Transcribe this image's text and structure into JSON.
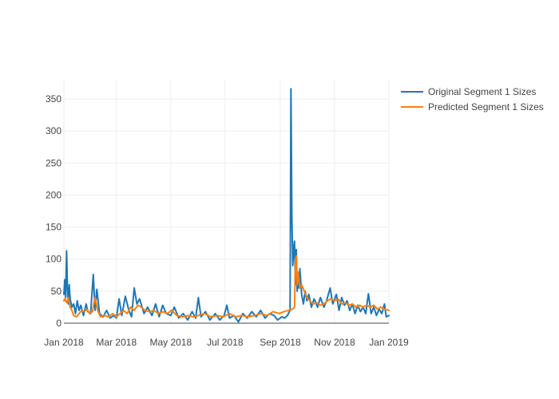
{
  "chart_data": {
    "type": "line",
    "title": "",
    "xlabel": "",
    "ylabel": "",
    "x_range": [
      "2018-01-01",
      "2019-01-01"
    ],
    "ylim": [
      0,
      380
    ],
    "x_ticks": [
      {
        "date": "2018-01-01",
        "label": "Jan 2018"
      },
      {
        "date": "2018-03-01",
        "label": "Mar 2018"
      },
      {
        "date": "2018-05-01",
        "label": "May 2018"
      },
      {
        "date": "2018-07-01",
        "label": "Jul 2018"
      },
      {
        "date": "2018-09-01",
        "label": "Sep 2018"
      },
      {
        "date": "2018-11-01",
        "label": "Nov 2018"
      },
      {
        "date": "2019-01-01",
        "label": "Jan 2019"
      }
    ],
    "y_ticks": [
      0,
      50,
      100,
      150,
      200,
      250,
      300,
      350
    ],
    "grid": true,
    "legend_position": "top-right",
    "series": [
      {
        "name": "Original Segment 1 Sizes",
        "color": "#1f77b4",
        "points": [
          [
            "2018-01-01",
            45
          ],
          [
            "2018-01-02",
            68
          ],
          [
            "2018-01-03",
            40
          ],
          [
            "2018-01-04",
            113
          ],
          [
            "2018-01-05",
            55
          ],
          [
            "2018-01-06",
            30
          ],
          [
            "2018-01-07",
            60
          ],
          [
            "2018-01-08",
            38
          ],
          [
            "2018-01-10",
            25
          ],
          [
            "2018-01-12",
            30
          ],
          [
            "2018-01-14",
            15
          ],
          [
            "2018-01-16",
            35
          ],
          [
            "2018-01-18",
            20
          ],
          [
            "2018-01-20",
            28
          ],
          [
            "2018-01-23",
            12
          ],
          [
            "2018-01-26",
            30
          ],
          [
            "2018-01-28",
            18
          ],
          [
            "2018-01-31",
            15
          ],
          [
            "2018-02-03",
            76
          ],
          [
            "2018-02-05",
            20
          ],
          [
            "2018-02-07",
            53
          ],
          [
            "2018-02-10",
            15
          ],
          [
            "2018-02-14",
            10
          ],
          [
            "2018-02-18",
            20
          ],
          [
            "2018-02-22",
            8
          ],
          [
            "2018-02-26",
            12
          ],
          [
            "2018-03-01",
            8
          ],
          [
            "2018-03-04",
            38
          ],
          [
            "2018-03-07",
            12
          ],
          [
            "2018-03-11",
            42
          ],
          [
            "2018-03-15",
            20
          ],
          [
            "2018-03-18",
            10
          ],
          [
            "2018-03-21",
            55
          ],
          [
            "2018-03-24",
            30
          ],
          [
            "2018-03-27",
            38
          ],
          [
            "2018-04-01",
            15
          ],
          [
            "2018-04-05",
            25
          ],
          [
            "2018-04-10",
            12
          ],
          [
            "2018-04-14",
            30
          ],
          [
            "2018-04-18",
            10
          ],
          [
            "2018-04-22",
            28
          ],
          [
            "2018-04-26",
            15
          ],
          [
            "2018-05-01",
            12
          ],
          [
            "2018-05-05",
            25
          ],
          [
            "2018-05-10",
            8
          ],
          [
            "2018-05-15",
            15
          ],
          [
            "2018-05-20",
            5
          ],
          [
            "2018-05-25",
            18
          ],
          [
            "2018-05-29",
            8
          ],
          [
            "2018-06-01",
            40
          ],
          [
            "2018-06-04",
            10
          ],
          [
            "2018-06-09",
            18
          ],
          [
            "2018-06-14",
            5
          ],
          [
            "2018-06-20",
            15
          ],
          [
            "2018-06-25",
            5
          ],
          [
            "2018-06-30",
            12
          ],
          [
            "2018-07-03",
            28
          ],
          [
            "2018-07-06",
            8
          ],
          [
            "2018-07-11",
            12
          ],
          [
            "2018-07-16",
            2
          ],
          [
            "2018-07-21",
            15
          ],
          [
            "2018-07-26",
            8
          ],
          [
            "2018-07-31",
            18
          ],
          [
            "2018-08-05",
            10
          ],
          [
            "2018-08-10",
            20
          ],
          [
            "2018-08-15",
            8
          ],
          [
            "2018-08-20",
            15
          ],
          [
            "2018-08-25",
            12
          ],
          [
            "2018-08-29",
            5
          ],
          [
            "2018-09-03",
            10
          ],
          [
            "2018-09-06",
            8
          ],
          [
            "2018-09-09",
            12
          ],
          [
            "2018-09-12",
            20
          ],
          [
            "2018-09-13",
            366
          ],
          [
            "2018-09-14",
            170
          ],
          [
            "2018-09-15",
            90
          ],
          [
            "2018-09-16",
            115
          ],
          [
            "2018-09-17",
            128
          ],
          [
            "2018-09-18",
            60
          ],
          [
            "2018-09-19",
            115
          ],
          [
            "2018-09-20",
            50
          ],
          [
            "2018-09-21",
            70
          ],
          [
            "2018-09-22",
            55
          ],
          [
            "2018-09-23",
            85
          ],
          [
            "2018-09-25",
            45
          ],
          [
            "2018-09-27",
            30
          ],
          [
            "2018-09-29",
            50
          ],
          [
            "2018-10-01",
            35
          ],
          [
            "2018-10-03",
            45
          ],
          [
            "2018-10-06",
            25
          ],
          [
            "2018-10-09",
            38
          ],
          [
            "2018-10-13",
            25
          ],
          [
            "2018-10-16",
            40
          ],
          [
            "2018-10-20",
            25
          ],
          [
            "2018-10-23",
            35
          ],
          [
            "2018-10-27",
            55
          ],
          [
            "2018-10-30",
            30
          ],
          [
            "2018-11-03",
            45
          ],
          [
            "2018-11-06",
            20
          ],
          [
            "2018-11-09",
            40
          ],
          [
            "2018-11-12",
            28
          ],
          [
            "2018-11-15",
            35
          ],
          [
            "2018-11-18",
            20
          ],
          [
            "2018-11-21",
            30
          ],
          [
            "2018-11-24",
            15
          ],
          [
            "2018-11-27",
            28
          ],
          [
            "2018-11-30",
            18
          ],
          [
            "2018-12-03",
            25
          ],
          [
            "2018-12-06",
            15
          ],
          [
            "2018-12-09",
            46
          ],
          [
            "2018-12-12",
            15
          ],
          [
            "2018-12-15",
            25
          ],
          [
            "2018-12-18",
            12
          ],
          [
            "2018-12-21",
            22
          ],
          [
            "2018-12-24",
            15
          ],
          [
            "2018-12-27",
            30
          ],
          [
            "2018-12-29",
            10
          ],
          [
            "2019-01-01",
            12
          ]
        ]
      },
      {
        "name": "Predicted Segment 1 Sizes",
        "color": "#ff7f0e",
        "points": [
          [
            "2018-01-01",
            35
          ],
          [
            "2018-01-02",
            38
          ],
          [
            "2018-01-04",
            32
          ],
          [
            "2018-01-06",
            40
          ],
          [
            "2018-01-08",
            25
          ],
          [
            "2018-01-10",
            20
          ],
          [
            "2018-01-12",
            12
          ],
          [
            "2018-01-15",
            10
          ],
          [
            "2018-01-18",
            15
          ],
          [
            "2018-01-21",
            20
          ],
          [
            "2018-01-24",
            18
          ],
          [
            "2018-01-27",
            22
          ],
          [
            "2018-01-30",
            15
          ],
          [
            "2018-02-02",
            18
          ],
          [
            "2018-02-05",
            40
          ],
          [
            "2018-02-08",
            20
          ],
          [
            "2018-02-11",
            10
          ],
          [
            "2018-02-15",
            12
          ],
          [
            "2018-02-20",
            10
          ],
          [
            "2018-02-25",
            15
          ],
          [
            "2018-03-01",
            10
          ],
          [
            "2018-03-05",
            15
          ],
          [
            "2018-03-09",
            20
          ],
          [
            "2018-03-13",
            15
          ],
          [
            "2018-03-17",
            25
          ],
          [
            "2018-03-21",
            20
          ],
          [
            "2018-03-25",
            28
          ],
          [
            "2018-03-29",
            25
          ],
          [
            "2018-04-02",
            20
          ],
          [
            "2018-04-07",
            18
          ],
          [
            "2018-04-12",
            20
          ],
          [
            "2018-04-17",
            15
          ],
          [
            "2018-04-22",
            18
          ],
          [
            "2018-04-27",
            15
          ],
          [
            "2018-05-02",
            20
          ],
          [
            "2018-05-08",
            12
          ],
          [
            "2018-05-14",
            10
          ],
          [
            "2018-05-20",
            12
          ],
          [
            "2018-05-26",
            10
          ],
          [
            "2018-06-01",
            12
          ],
          [
            "2018-06-08",
            15
          ],
          [
            "2018-06-15",
            10
          ],
          [
            "2018-06-22",
            12
          ],
          [
            "2018-06-29",
            10
          ],
          [
            "2018-07-06",
            15
          ],
          [
            "2018-07-13",
            10
          ],
          [
            "2018-07-20",
            12
          ],
          [
            "2018-07-27",
            10
          ],
          [
            "2018-08-03",
            12
          ],
          [
            "2018-08-10",
            15
          ],
          [
            "2018-08-17",
            12
          ],
          [
            "2018-08-24",
            18
          ],
          [
            "2018-08-31",
            15
          ],
          [
            "2018-09-05",
            18
          ],
          [
            "2018-09-10",
            20
          ],
          [
            "2018-09-15",
            22
          ],
          [
            "2018-09-17",
            25
          ],
          [
            "2018-09-18",
            95
          ],
          [
            "2018-09-19",
            105
          ],
          [
            "2018-09-20",
            60
          ],
          [
            "2018-09-21",
            80
          ],
          [
            "2018-09-23",
            55
          ],
          [
            "2018-09-25",
            60
          ],
          [
            "2018-09-28",
            50
          ],
          [
            "2018-10-01",
            40
          ],
          [
            "2018-10-04",
            35
          ],
          [
            "2018-10-08",
            30
          ],
          [
            "2018-10-12",
            32
          ],
          [
            "2018-10-16",
            28
          ],
          [
            "2018-10-20",
            30
          ],
          [
            "2018-10-24",
            35
          ],
          [
            "2018-10-28",
            38
          ],
          [
            "2018-11-01",
            35
          ],
          [
            "2018-11-05",
            38
          ],
          [
            "2018-11-09",
            30
          ],
          [
            "2018-11-13",
            32
          ],
          [
            "2018-11-17",
            28
          ],
          [
            "2018-11-21",
            30
          ],
          [
            "2018-11-25",
            25
          ],
          [
            "2018-11-29",
            28
          ],
          [
            "2018-12-03",
            25
          ],
          [
            "2018-12-07",
            28
          ],
          [
            "2018-12-11",
            25
          ],
          [
            "2018-12-15",
            28
          ],
          [
            "2018-12-19",
            22
          ],
          [
            "2018-12-23",
            25
          ],
          [
            "2018-12-27",
            22
          ],
          [
            "2019-01-01",
            20
          ]
        ]
      }
    ]
  }
}
